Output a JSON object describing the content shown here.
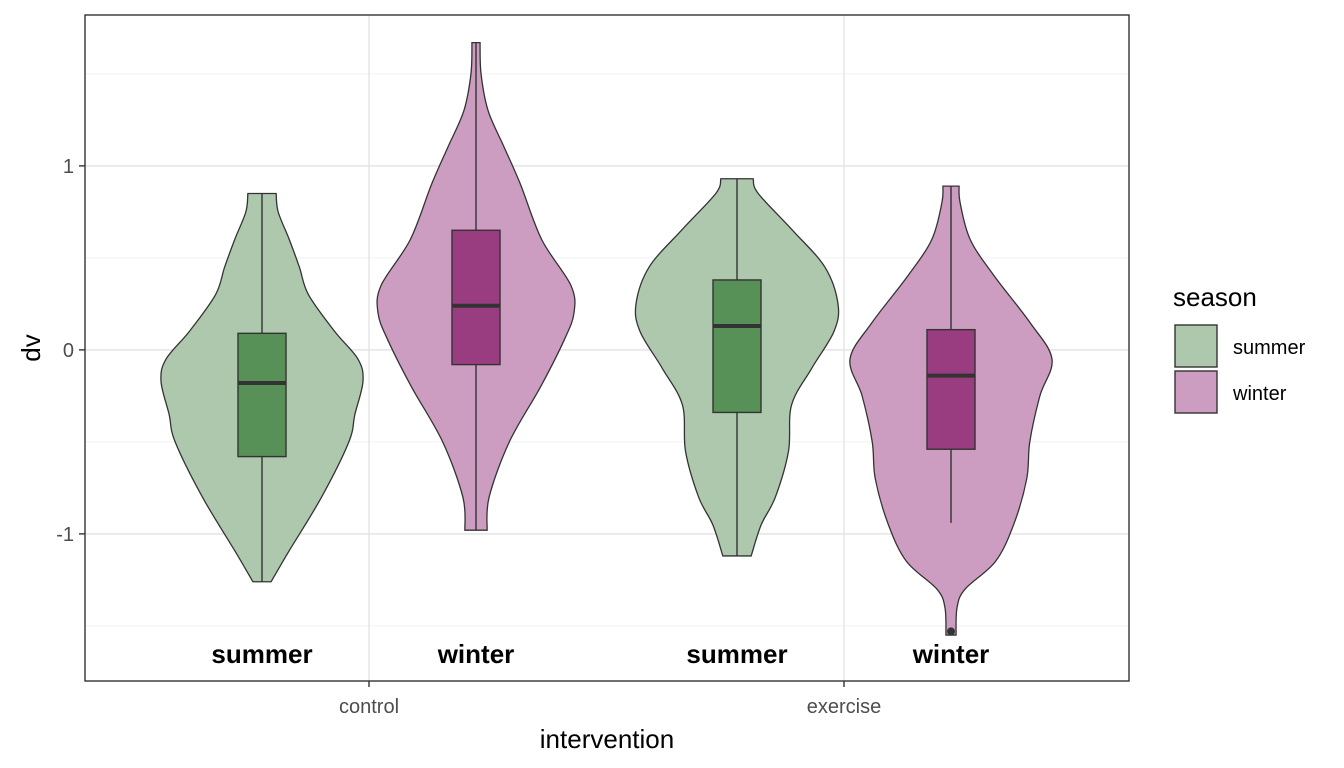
{
  "chart_data": {
    "type": "violin",
    "title": "",
    "xlabel": "intervention",
    "ylabel": "dv",
    "x_categories": [
      "control",
      "exercise"
    ],
    "ylim": [
      -1.8,
      1.82
    ],
    "yticks": [
      -1,
      0,
      1
    ],
    "grid": true,
    "legend": {
      "title": "season",
      "position": "right",
      "entries": [
        {
          "name": "summer",
          "color": "#adc8ad"
        },
        {
          "name": "winter",
          "color": "#cc9dc0"
        }
      ]
    },
    "box_colors": {
      "summer": "#579157",
      "winter": "#9a3d80"
    },
    "groups": [
      {
        "intervention": "control",
        "season": "summer",
        "label": "summer",
        "min": -1.26,
        "q1": -0.58,
        "median": -0.18,
        "q3": 0.09,
        "max": 0.85,
        "outliers": [],
        "density": [
          [
            -1.26,
            0.09
          ],
          [
            -1.1,
            0.26
          ],
          [
            -0.8,
            0.59
          ],
          [
            -0.5,
            0.86
          ],
          [
            -0.35,
            0.92
          ],
          [
            -0.17,
            1.0
          ],
          [
            -0.05,
            0.95
          ],
          [
            0.1,
            0.72
          ],
          [
            0.3,
            0.46
          ],
          [
            0.45,
            0.37
          ],
          [
            0.6,
            0.27
          ],
          [
            0.75,
            0.16
          ],
          [
            0.85,
            0.14
          ]
        ]
      },
      {
        "intervention": "control",
        "season": "winter",
        "label": "winter",
        "min": -0.98,
        "q1": -0.08,
        "median": 0.24,
        "q3": 0.65,
        "max": 1.67,
        "outliers": [],
        "density": [
          [
            -0.98,
            0.11
          ],
          [
            -0.8,
            0.13
          ],
          [
            -0.5,
            0.33
          ],
          [
            -0.2,
            0.64
          ],
          [
            0.05,
            0.87
          ],
          [
            0.2,
            0.97
          ],
          [
            0.35,
            0.94
          ],
          [
            0.6,
            0.65
          ],
          [
            0.9,
            0.44
          ],
          [
            1.1,
            0.28
          ],
          [
            1.3,
            0.12
          ],
          [
            1.5,
            0.05
          ],
          [
            1.67,
            0.04
          ]
        ]
      },
      {
        "intervention": "exercise",
        "season": "summer",
        "label": "summer",
        "min": -1.12,
        "q1": -0.34,
        "median": 0.13,
        "q3": 0.38,
        "max": 0.93,
        "outliers": [],
        "density": [
          [
            -1.12,
            0.14
          ],
          [
            -0.95,
            0.24
          ],
          [
            -0.8,
            0.38
          ],
          [
            -0.55,
            0.51
          ],
          [
            -0.3,
            0.54
          ],
          [
            -0.1,
            0.74
          ],
          [
            0.1,
            0.96
          ],
          [
            0.25,
            1.0
          ],
          [
            0.45,
            0.87
          ],
          [
            0.65,
            0.55
          ],
          [
            0.85,
            0.21
          ],
          [
            0.93,
            0.16
          ]
        ]
      },
      {
        "intervention": "exercise",
        "season": "winter",
        "label": "winter",
        "min": -0.94,
        "q1": -0.54,
        "median": -0.14,
        "q3": 0.11,
        "max": 0.89,
        "outliers": [
          -1.53
        ],
        "density": [
          [
            -1.55,
            0.05
          ],
          [
            -1.4,
            0.06
          ],
          [
            -1.3,
            0.14
          ],
          [
            -1.15,
            0.44
          ],
          [
            -0.95,
            0.62
          ],
          [
            -0.7,
            0.75
          ],
          [
            -0.5,
            0.78
          ],
          [
            -0.25,
            0.88
          ],
          [
            -0.05,
            1.0
          ],
          [
            0.15,
            0.78
          ],
          [
            0.4,
            0.43
          ],
          [
            0.6,
            0.19
          ],
          [
            0.8,
            0.09
          ],
          [
            0.89,
            0.08
          ]
        ]
      }
    ]
  }
}
